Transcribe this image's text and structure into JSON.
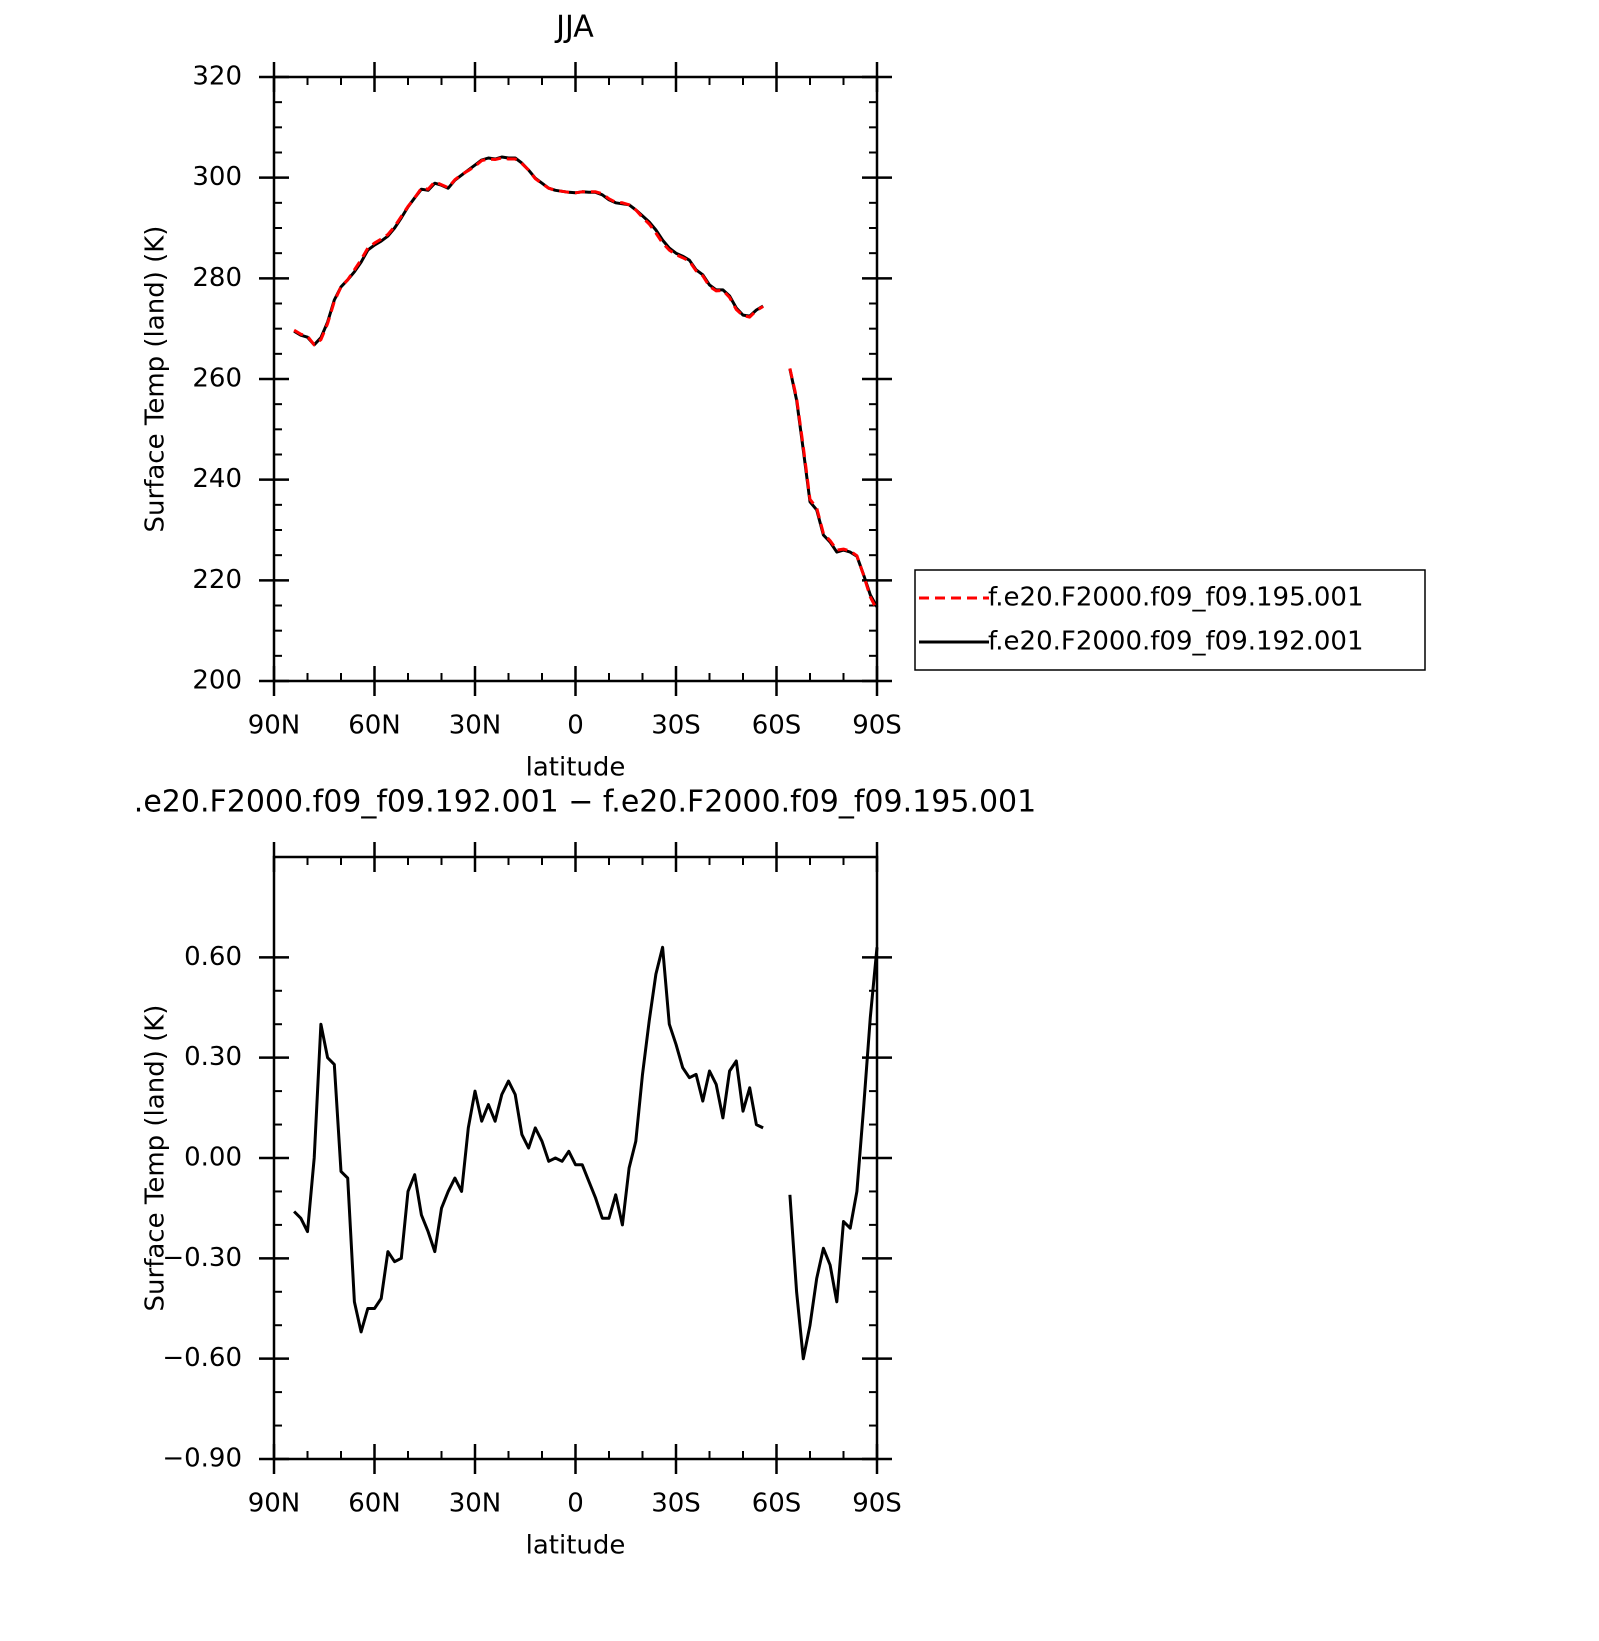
{
  "chart_data": [
    {
      "type": "line",
      "title": "JJA",
      "x_label": "latitude",
      "y_label": "Surface Temp (land) (K)",
      "x": [
        84,
        82,
        80,
        78,
        76,
        74,
        72,
        70,
        68,
        66,
        64,
        62,
        60,
        58,
        56,
        54,
        52,
        50,
        48,
        46,
        44,
        42,
        40,
        38,
        36,
        34,
        32,
        30,
        28,
        26,
        24,
        22,
        20,
        18,
        16,
        14,
        12,
        10,
        8,
        6,
        4,
        2,
        0,
        -2,
        -4,
        -6,
        -8,
        -10,
        -12,
        -14,
        -16,
        -18,
        -20,
        -22,
        -24,
        -26,
        -28,
        -30,
        -32,
        -34,
        -36,
        -38,
        -40,
        -42,
        -44,
        -46,
        -48,
        -50,
        -52,
        -54,
        -56,
        -58,
        -60,
        -62,
        -64,
        -66,
        -68,
        -70,
        -72,
        -74,
        -76,
        -78,
        -80,
        -82,
        -84,
        -86,
        -88,
        -90
      ],
      "series": [
        {
          "name": "f.e20.F2000.f09_f09.195.001",
          "color": "#ff0000",
          "linestyle": "dashed",
          "values": [
            269.7,
            268.9,
            268.5,
            266.8,
            267.8,
            271.0,
            275.4,
            278.3,
            279.7,
            281.7,
            283.7,
            286.0,
            287.0,
            287.8,
            288.7,
            290.3,
            292.3,
            294.3,
            296.0,
            297.9,
            297.7,
            299.2,
            298.6,
            298.0,
            299.6,
            300.6,
            301.4,
            302.3,
            303.4,
            303.7,
            303.6,
            303.9,
            303.7,
            303.7,
            302.8,
            301.5,
            299.8,
            298.8,
            297.9,
            297.5,
            297.3,
            297.1,
            297.0,
            297.2,
            297.2,
            297.2,
            296.8,
            295.8,
            295.1,
            295.0,
            294.6,
            293.6,
            292.1,
            290.8,
            289.0,
            287.0,
            285.6,
            284.7,
            284.1,
            283.4,
            281.5,
            280.5,
            278.4,
            277.5,
            277.6,
            276.2,
            273.8,
            272.6,
            272.3,
            273.6,
            274.4,
            null,
            null,
            null,
            262.1,
            256.2,
            246.5,
            236.1,
            234.4,
            229.3,
            227.9,
            226.0,
            226.2,
            225.8,
            224.9,
            221.0,
            216.7,
            214.1
          ]
        },
        {
          "name": "f.e20.F2000.f09_f09.192.001",
          "color": "#000000",
          "linestyle": "solid",
          "values": [
            269.5,
            268.7,
            268.3,
            266.8,
            268.2,
            271.3,
            275.7,
            278.3,
            279.7,
            281.3,
            283.2,
            285.6,
            286.6,
            287.4,
            288.4,
            290.0,
            292.0,
            294.2,
            296.0,
            297.7,
            297.5,
            298.9,
            298.5,
            297.9,
            299.5,
            300.5,
            301.5,
            302.5,
            303.5,
            303.9,
            303.7,
            304.1,
            303.9,
            303.9,
            302.9,
            301.5,
            299.9,
            298.9,
            297.9,
            297.5,
            297.3,
            297.1,
            297.0,
            297.2,
            297.1,
            297.1,
            296.6,
            295.6,
            295.0,
            294.8,
            294.6,
            293.6,
            292.4,
            291.2,
            289.6,
            287.6,
            286.0,
            285.0,
            284.4,
            283.6,
            281.7,
            280.7,
            278.7,
            277.7,
            277.7,
            276.5,
            274.1,
            272.7,
            272.5,
            273.7,
            274.5,
            null,
            null,
            null,
            262.0,
            255.8,
            245.9,
            235.6,
            234.0,
            229.0,
            227.6,
            225.6,
            226.0,
            225.6,
            224.8,
            221.1,
            217.1,
            214.7
          ]
        }
      ],
      "xlim": [
        90,
        -90
      ],
      "xticks": [
        {
          "value": 90,
          "label": "90N"
        },
        {
          "value": 60,
          "label": "60N"
        },
        {
          "value": 30,
          "label": "30N"
        },
        0,
        {
          "value": -30,
          "label": "30S"
        },
        {
          "value": -60,
          "label": "60S"
        },
        {
          "value": -90,
          "label": "90S"
        }
      ],
      "ylim": [
        200,
        320
      ],
      "yticks": [
        200,
        220,
        240,
        260,
        280,
        300,
        320
      ],
      "legend_position": "right"
    },
    {
      "type": "line",
      "title": ".e20.F2000.f09_f09.192.001 − f.e20.F2000.f09_f09.195.001",
      "x_label": "latitude",
      "y_label": "Surface Temp (land) (K)",
      "x": [
        84,
        82,
        80,
        78,
        76,
        74,
        72,
        70,
        68,
        66,
        64,
        62,
        60,
        58,
        56,
        54,
        52,
        50,
        48,
        46,
        44,
        42,
        40,
        38,
        36,
        34,
        32,
        30,
        28,
        26,
        24,
        22,
        20,
        18,
        16,
        14,
        12,
        10,
        8,
        6,
        4,
        2,
        0,
        -2,
        -4,
        -6,
        -8,
        -10,
        -12,
        -14,
        -16,
        -18,
        -20,
        -22,
        -24,
        -26,
        -28,
        -30,
        -32,
        -34,
        -36,
        -38,
        -40,
        -42,
        -44,
        -46,
        -48,
        -50,
        -52,
        -54,
        -56,
        -58,
        -60,
        -62,
        -64,
        -66,
        -68,
        -70,
        -72,
        -74,
        -76,
        -78,
        -80,
        -82,
        -84,
        -86,
        -88,
        -90
      ],
      "color": "#000000",
      "values": [
        -0.16,
        -0.18,
        -0.22,
        0.0,
        0.4,
        0.3,
        0.28,
        -0.04,
        -0.06,
        -0.43,
        -0.52,
        -0.45,
        -0.45,
        -0.42,
        -0.28,
        -0.31,
        -0.3,
        -0.1,
        -0.05,
        -0.17,
        -0.22,
        -0.28,
        -0.15,
        -0.1,
        -0.06,
        -0.1,
        0.09,
        0.2,
        0.11,
        0.16,
        0.11,
        0.19,
        0.23,
        0.19,
        0.07,
        0.03,
        0.09,
        0.05,
        -0.01,
        0.0,
        -0.01,
        0.02,
        -0.02,
        -0.02,
        -0.07,
        -0.12,
        -0.18,
        -0.18,
        -0.11,
        -0.2,
        -0.03,
        0.05,
        0.25,
        0.41,
        0.55,
        0.63,
        0.4,
        0.34,
        0.27,
        0.24,
        0.25,
        0.17,
        0.26,
        0.22,
        0.12,
        0.26,
        0.29,
        0.14,
        0.21,
        0.1,
        0.09,
        null,
        null,
        null,
        -0.11,
        -0.4,
        -0.6,
        -0.5,
        -0.36,
        -0.27,
        -0.32,
        -0.43,
        -0.19,
        -0.21,
        -0.1,
        0.15,
        0.42,
        0.63
      ],
      "xlim": [
        90,
        -90
      ],
      "xticks": [
        {
          "value": 90,
          "label": "90N"
        },
        {
          "value": 60,
          "label": "60N"
        },
        {
          "value": 30,
          "label": "30N"
        },
        0,
        {
          "value": -30,
          "label": "30S"
        },
        {
          "value": -60,
          "label": "60S"
        },
        {
          "value": -90,
          "label": "90S"
        }
      ],
      "ylim": [
        -0.9,
        0.9
      ],
      "yticks": [
        {
          "value": -0.9,
          "label": "−0.90"
        },
        {
          "value": -0.6,
          "label": "−0.60"
        },
        {
          "value": -0.3,
          "label": "−0.30"
        },
        {
          "value": 0,
          "label": "0.00"
        },
        {
          "value": 0.3,
          "label": "0.30"
        },
        {
          "value": 0.6,
          "label": "0.60"
        }
      ]
    }
  ]
}
